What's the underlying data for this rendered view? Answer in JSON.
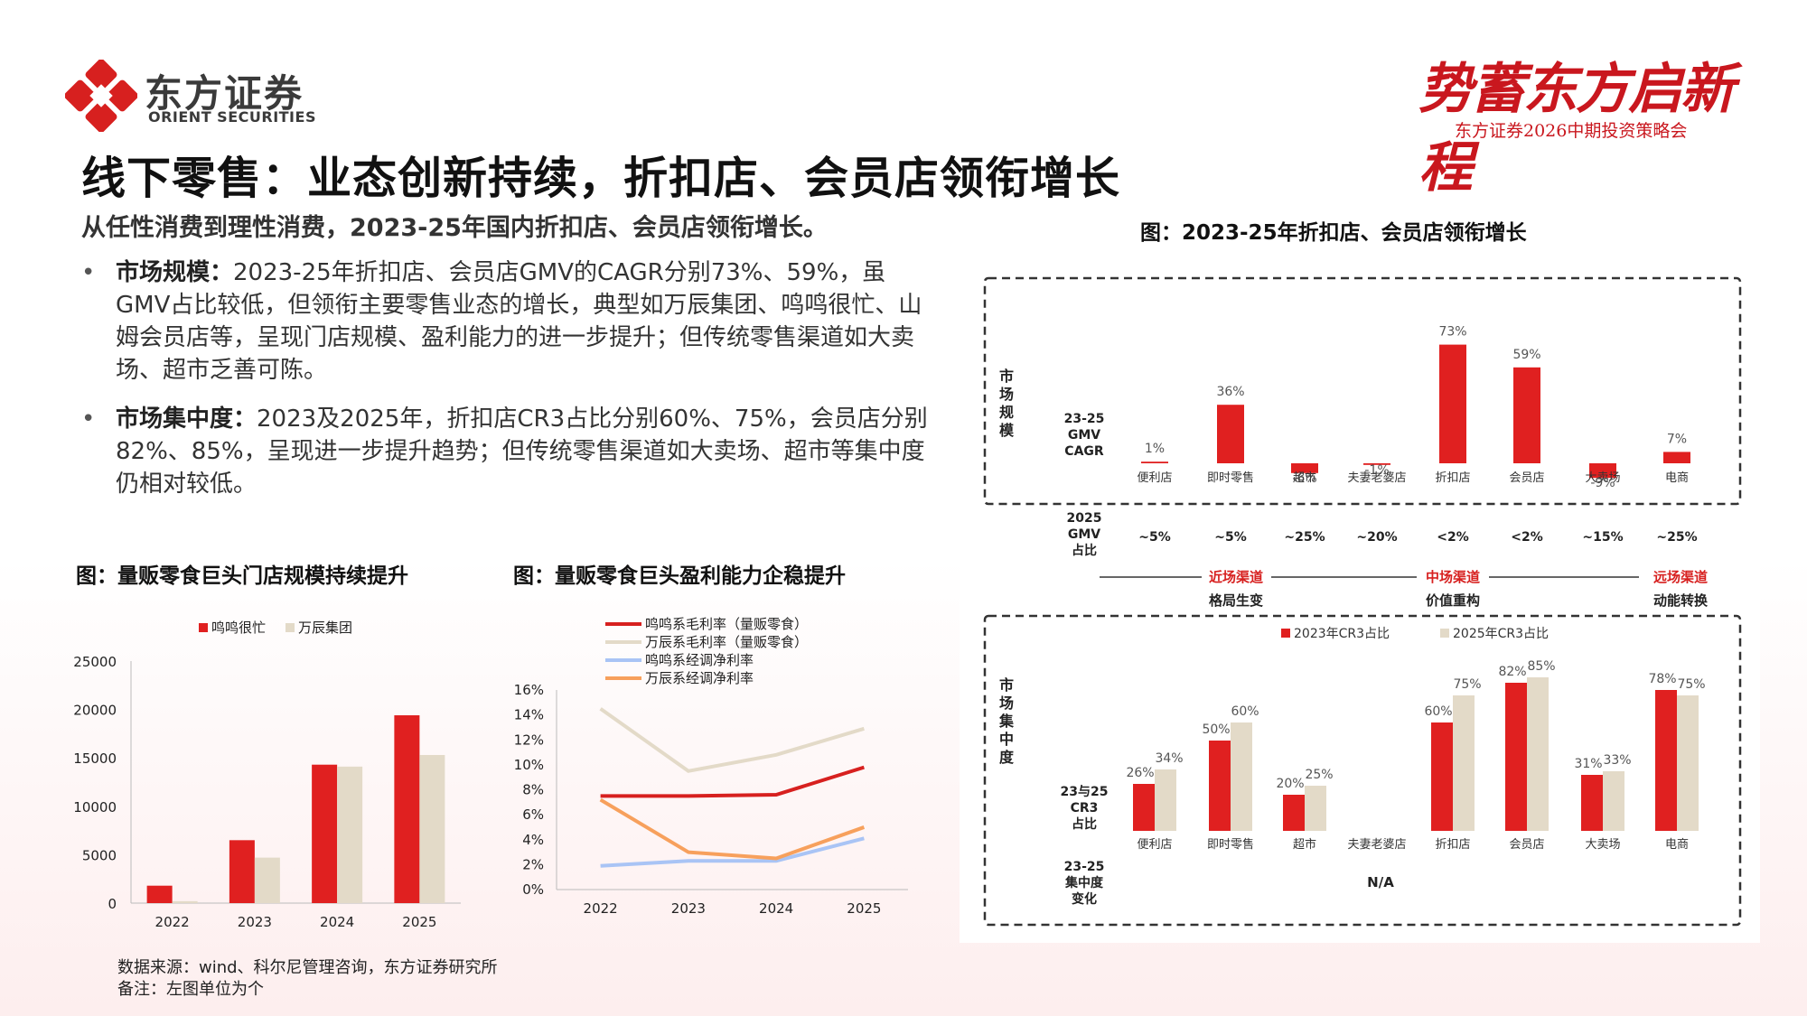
{
  "header": {
    "logo_cn": "东方证券",
    "logo_en": "ORIENT SECURITIES",
    "slogan_big": "势蓄东方启新程",
    "slogan_small": "东方证券2026中期投资策略会"
  },
  "title": "线下零售：业态创新持续，折扣店、会员店领衔增长",
  "subtitle": "从任性消费到理性消费，2023-25年国内折扣店、会员店领衔增长。",
  "bullets": [
    {
      "head": "市场规模：",
      "text": "2023-25年折扣店、会员店GMV的CAGR分别73%、59%，虽GMV占比较低，但领衔主要零售业态的增长，典型如万辰集团、鸣鸣很忙、山姆会员店等，呈现门店规模、盈利能力的进一步提升；但传统零售渠道如大卖场、超市乏善可陈。"
    },
    {
      "head": "市场集中度：",
      "text": "2023及2025年，折扣店CR3占比分别60%、75%，会员店分别82%、85%，呈现进一步提升趋势；但传统零售渠道如大卖场、超市等集中度仍相对较低。"
    }
  ],
  "colors": {
    "red": "#e02020",
    "beige": "#e3dac8",
    "blue": "#a9c4f5",
    "orange": "#f7a05c",
    "dark_red": "#d7201f"
  },
  "fig1_title": "图：量贩零食巨头门店规模持续提升",
  "fig2_title": "图：量贩零食巨头盈利能力企稳提升",
  "fig3_title": "图：2023-25年折扣店、会员店领衔增长",
  "source": {
    "line1": "数据来源：wind、科尔尼管理咨询，东方证券研究所",
    "line2": "备注：左图单位为个"
  },
  "chart_data": [
    {
      "type": "bar",
      "categories": [
        "2022",
        "2023",
        "2024",
        "2025"
      ],
      "series": [
        {
          "name": "鸣鸣很忙",
          "values": [
            1800,
            6500,
            14300,
            19400
          ]
        },
        {
          "name": "万辰集团",
          "values": [
            200,
            4700,
            14100,
            15300
          ]
        }
      ],
      "ylim": [
        0,
        25000
      ],
      "yticks": [
        "0",
        "5000",
        "10000",
        "15000",
        "20000",
        "25000"
      ],
      "legend": "top"
    },
    {
      "type": "line",
      "categories": [
        "2022",
        "2023",
        "2024",
        "2025"
      ],
      "series": [
        {
          "name": "鸣鸣系毛利率（量贩零食）",
          "values": [
            7.5,
            7.5,
            7.6,
            9.8
          ]
        },
        {
          "name": "万辰系毛利率（量贩零食）",
          "values": [
            14.5,
            9.5,
            10.8,
            12.9
          ]
        },
        {
          "name": "鸣鸣系经调净利率",
          "values": [
            1.9,
            2.3,
            2.3,
            4.1
          ]
        },
        {
          "name": "万辰系经调净利率",
          "values": [
            7.2,
            3.0,
            2.5,
            5.0
          ]
        }
      ],
      "ylim": [
        0,
        16
      ],
      "yticks": [
        "0%",
        "2%",
        "4%",
        "6%",
        "8%",
        "10%",
        "12%",
        "14%",
        "16%"
      ],
      "legend": "top-left"
    },
    {
      "type": "bar",
      "panel": "top",
      "side_label": [
        "市",
        "场",
        "规",
        "模"
      ],
      "row_label": [
        "23-25",
        "GMV",
        "CAGR"
      ],
      "categories": [
        "便利店",
        "即时零售",
        "超市",
        "夫妻老婆店",
        "折扣店",
        "会员店",
        "大卖场",
        "电商"
      ],
      "values": [
        1,
        36,
        -6,
        -1,
        73,
        59,
        -9,
        7
      ],
      "value_labels": [
        "1%",
        "36%",
        "-6%",
        "-1%",
        "73%",
        "59%",
        "-9%",
        "7%"
      ],
      "share_label": [
        "2025",
        "GMV",
        "占比"
      ],
      "share_values": [
        "~5%",
        "~5%",
        "~25%",
        "~20%",
        "<2%",
        "<2%",
        "~15%",
        "~25%"
      ]
    },
    {
      "type": "bar",
      "panel": "bottom",
      "side_label": [
        "市",
        "场",
        "集",
        "中",
        "度"
      ],
      "row_label": [
        "23与25",
        "CR3",
        "占比"
      ],
      "categories": [
        "便利店",
        "即时零售",
        "超市",
        "夫妻老婆店",
        "折扣店",
        "会员店",
        "大卖场",
        "电商"
      ],
      "series": [
        {
          "name": "2023年CR3占比",
          "values": [
            26,
            50,
            20,
            null,
            60,
            82,
            31,
            78
          ]
        },
        {
          "name": "2025年CR3占比",
          "values": [
            34,
            60,
            25,
            null,
            75,
            85,
            33,
            75
          ]
        }
      ],
      "change_label": [
        "23-25",
        "集中度",
        "变化"
      ],
      "change_value": "N/A"
    }
  ],
  "channels": [
    {
      "name": "近场渠道",
      "desc": "格局生变"
    },
    {
      "name": "中场渠道",
      "desc": "价值重构"
    },
    {
      "name": "远场渠道",
      "desc": "动能转换"
    }
  ]
}
